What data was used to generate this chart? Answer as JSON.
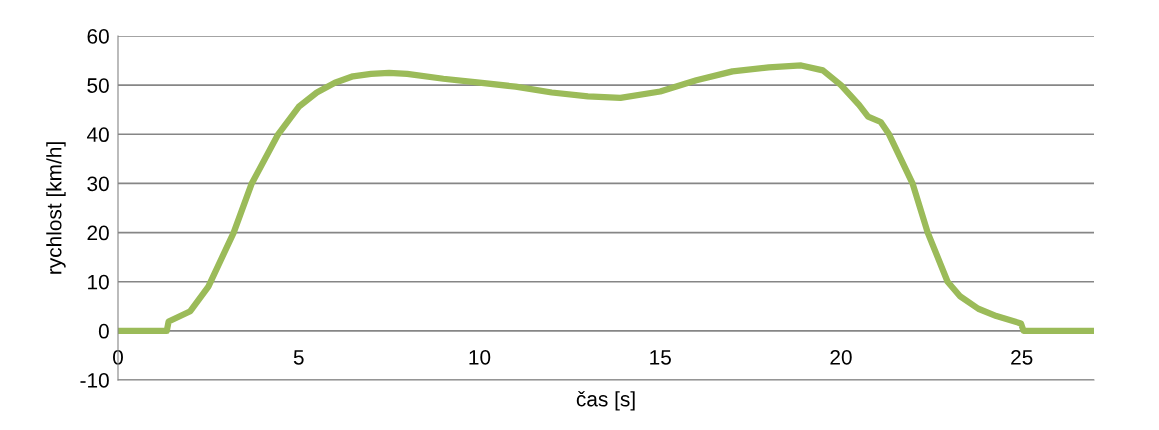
{
  "chart_data": {
    "type": "line",
    "xlabel": "čas [s]",
    "ylabel": "rychlost [km/h]",
    "xlim": [
      0,
      27
    ],
    "xticks": [
      0,
      5,
      10,
      15,
      20,
      25
    ],
    "ylim": [
      -10,
      60
    ],
    "yticks": [
      -10,
      0,
      10,
      20,
      30,
      40,
      50,
      60
    ],
    "grid": "y",
    "marker": "none",
    "line_style": "solid",
    "series": [
      {
        "color": "#9bbb59",
        "x": [
          0,
          1.35,
          1.4,
          2,
          2.5,
          3.2,
          3.7,
          4.43,
          5,
          5.5,
          6,
          6.5,
          7,
          7.5,
          8,
          9,
          10,
          11,
          12,
          13,
          13.9,
          15,
          16,
          17,
          18,
          18.9,
          19.5,
          20,
          20.5,
          20.75,
          21.1,
          21.33,
          21.98,
          22.4,
          22.95,
          23.3,
          23.8,
          24.3,
          24.98,
          25.05,
          27
        ],
        "values": [
          0,
          0,
          1.9,
          4,
          9,
          20,
          30,
          40,
          45.6,
          48.5,
          50.5,
          51.8,
          52.3,
          52.5,
          52.3,
          51.3,
          50.5,
          49.7,
          48.5,
          47.7,
          47.4,
          48.7,
          51,
          52.8,
          53.6,
          54,
          53,
          50,
          46,
          43.6,
          42.5,
          40,
          30,
          20,
          10,
          7,
          4.5,
          3,
          1.5,
          0,
          0
        ]
      }
    ]
  }
}
